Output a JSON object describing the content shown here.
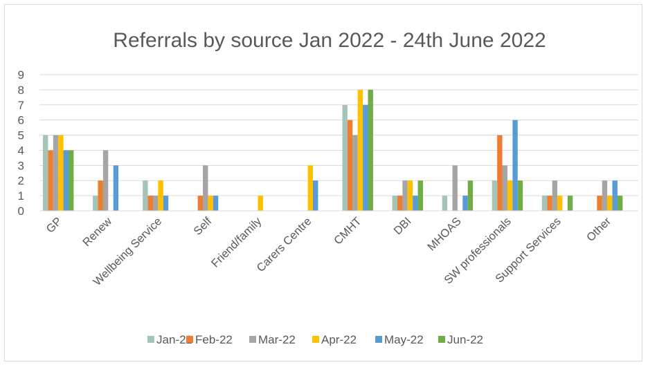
{
  "chart_data": {
    "type": "bar",
    "title": "Referrals by source Jan 2022 - 24th June 2022",
    "xlabel": "",
    "ylabel": "",
    "ylim": [
      0,
      9
    ],
    "yticks": [
      0,
      1,
      2,
      3,
      4,
      5,
      6,
      7,
      8,
      9
    ],
    "grid": true,
    "legend_position": "bottom",
    "categories": [
      "GP",
      "Renew",
      "Wellbeing Service",
      "Self",
      "Friend/family",
      "Carers Centre",
      "CMHT",
      "DBI",
      "MHOAS",
      "SW professionals",
      "Support Services",
      "Other"
    ],
    "series": [
      {
        "name": "Jan-22",
        "color": "#a5c4b8",
        "values": [
          5,
          1,
          2,
          0,
          0,
          0,
          7,
          1,
          1,
          2,
          1,
          0
        ]
      },
      {
        "name": "Feb-22",
        "color": "#ed7d31",
        "values": [
          4,
          2,
          1,
          1,
          0,
          0,
          6,
          1,
          0,
          5,
          1,
          1
        ]
      },
      {
        "name": "Mar-22",
        "color": "#a5a5a5",
        "values": [
          5,
          4,
          1,
          3,
          0,
          0,
          5,
          2,
          3,
          3,
          2,
          2
        ]
      },
      {
        "name": "Apr-22",
        "color": "#ffc000",
        "values": [
          5,
          0,
          2,
          1,
          1,
          3,
          8,
          2,
          0,
          2,
          1,
          1
        ]
      },
      {
        "name": "May-22",
        "color": "#5b9bd5",
        "values": [
          4,
          3,
          1,
          1,
          0,
          2,
          7,
          1,
          1,
          6,
          0,
          2
        ]
      },
      {
        "name": "Jun-22",
        "color": "#70ad47",
        "values": [
          4,
          0,
          0,
          0,
          0,
          0,
          8,
          2,
          2,
          2,
          1,
          1
        ]
      }
    ]
  }
}
